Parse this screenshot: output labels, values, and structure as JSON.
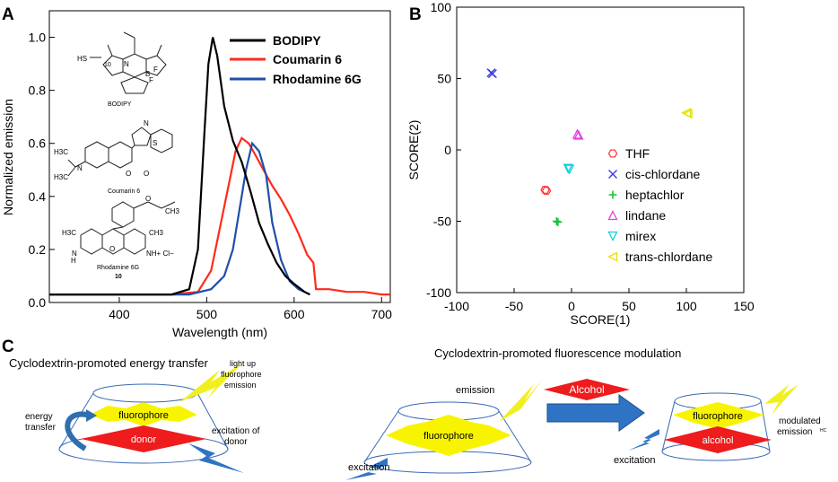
{
  "panels": {
    "A": "A",
    "B": "B",
    "C": "C"
  },
  "colors": {
    "bodipy": "#000000",
    "coumarin": "#ff2a1a",
    "rhodamine": "#1f4fa8",
    "THF": "#ff3b3b",
    "cis-chlordane": "#3a3adf",
    "heptachlor": "#16c43a",
    "lindane": "#e040e0",
    "mirex": "#10d0e0",
    "trans-chlordane": "#e6e000"
  },
  "chart_data": [
    {
      "type": "line",
      "title": "",
      "xlabel": "Wavelength (nm)",
      "ylabel": "Normalized emission",
      "xlim": [
        320,
        710
      ],
      "ylim": [
        0,
        1.1
      ],
      "xticks": [
        400,
        500,
        600,
        700
      ],
      "yticks": [
        0.0,
        0.2,
        0.4,
        0.6,
        0.8,
        1.0
      ],
      "legend": [
        "BODIPY",
        "Coumarin 6",
        "Rhodamine 6G"
      ],
      "structures": {
        "bodipy": "BODIPY",
        "coumarin": "Coumarin 6",
        "rhodamine": "Rhodamine 6G",
        "rhodamine_num": "10",
        "sh": "HS",
        "n10": "10",
        "nh": "NH+ Cl−",
        "h": "H",
        "n": "N",
        "b": "B",
        "f": "F",
        "h3c": "H3C",
        "ch3": "CH3",
        "o": "O",
        "s": "S"
      },
      "series": [
        {
          "name": "BODIPY",
          "x": [
            320,
            420,
            460,
            480,
            490,
            497,
            502,
            507,
            512,
            520,
            530,
            540,
            550,
            560,
            570,
            580,
            590,
            600,
            612,
            618
          ],
          "y": [
            0.03,
            0.03,
            0.03,
            0.05,
            0.2,
            0.62,
            0.9,
            1.0,
            0.93,
            0.74,
            0.61,
            0.53,
            0.42,
            0.3,
            0.22,
            0.15,
            0.1,
            0.07,
            0.04,
            0.03
          ]
        },
        {
          "name": "Coumarin 6",
          "x": [
            320,
            460,
            490,
            505,
            515,
            525,
            533,
            540,
            548,
            555,
            565,
            575,
            585,
            595,
            605,
            615,
            622,
            625,
            640,
            660,
            680,
            700,
            710
          ],
          "y": [
            0.03,
            0.03,
            0.04,
            0.12,
            0.28,
            0.44,
            0.57,
            0.62,
            0.6,
            0.56,
            0.5,
            0.44,
            0.39,
            0.33,
            0.26,
            0.18,
            0.15,
            0.05,
            0.05,
            0.04,
            0.04,
            0.03,
            0.03
          ]
        },
        {
          "name": "Rhodamine 6G",
          "x": [
            320,
            480,
            505,
            520,
            530,
            538,
            545,
            552,
            560,
            568,
            575,
            585,
            595,
            605,
            612,
            618
          ],
          "y": [
            0.03,
            0.03,
            0.05,
            0.1,
            0.2,
            0.36,
            0.5,
            0.6,
            0.57,
            0.48,
            0.3,
            0.16,
            0.08,
            0.05,
            0.04,
            0.03
          ]
        }
      ]
    },
    {
      "type": "scatter",
      "title": "",
      "xlabel": "SCORE(1)",
      "ylabel": "SCORE(2)",
      "xlim": [
        -100,
        150
      ],
      "ylim": [
        -100,
        100
      ],
      "xticks": [
        -100,
        -50,
        0,
        50,
        100,
        150
      ],
      "yticks": [
        -100,
        -50,
        0,
        50,
        100
      ],
      "legend": [
        "THF",
        "cis-chlordane",
        "heptachlor",
        "lindane",
        "mirex",
        "trans-chlordane"
      ],
      "series": [
        {
          "name": "THF",
          "marker": "hexagon",
          "x": [
            -23
          ],
          "y": [
            -28
          ]
        },
        {
          "name": "cis-chlordane",
          "marker": "x",
          "x": [
            -70
          ],
          "y": [
            54
          ]
        },
        {
          "name": "heptachlor",
          "marker": "plus",
          "x": [
            -13
          ],
          "y": [
            -50
          ]
        },
        {
          "name": "lindane",
          "marker": "triangle-up",
          "x": [
            5
          ],
          "y": [
            11
          ]
        },
        {
          "name": "mirex",
          "marker": "triangle-down",
          "x": [
            -3
          ],
          "y": [
            -13
          ]
        },
        {
          "name": "trans-chlordane",
          "marker": "triangle-left",
          "x": [
            100
          ],
          "y": [
            26
          ]
        }
      ]
    }
  ],
  "diagram": {
    "left_title": "Cyclodextrin-promoted energy transfer",
    "right_title": "Cyclodextrin-promoted fluorescence modulation",
    "light_up_l1": "light up",
    "light_up_l2": "fluorophore",
    "light_up_l3": "emission",
    "energy_l1": "energy",
    "energy_l2": "transfer",
    "fluorophore": "fluorophore",
    "donor": "donor",
    "excitation_of_l1": "excitation of",
    "excitation_of_l2": "donor",
    "emission": "emission",
    "alcohol_cap": "Alcohol",
    "alcohol": "alcohol",
    "excitation": "excitation",
    "modulated_l1": "modulated",
    "modulated_l2": "emission",
    "hc": "HC"
  }
}
